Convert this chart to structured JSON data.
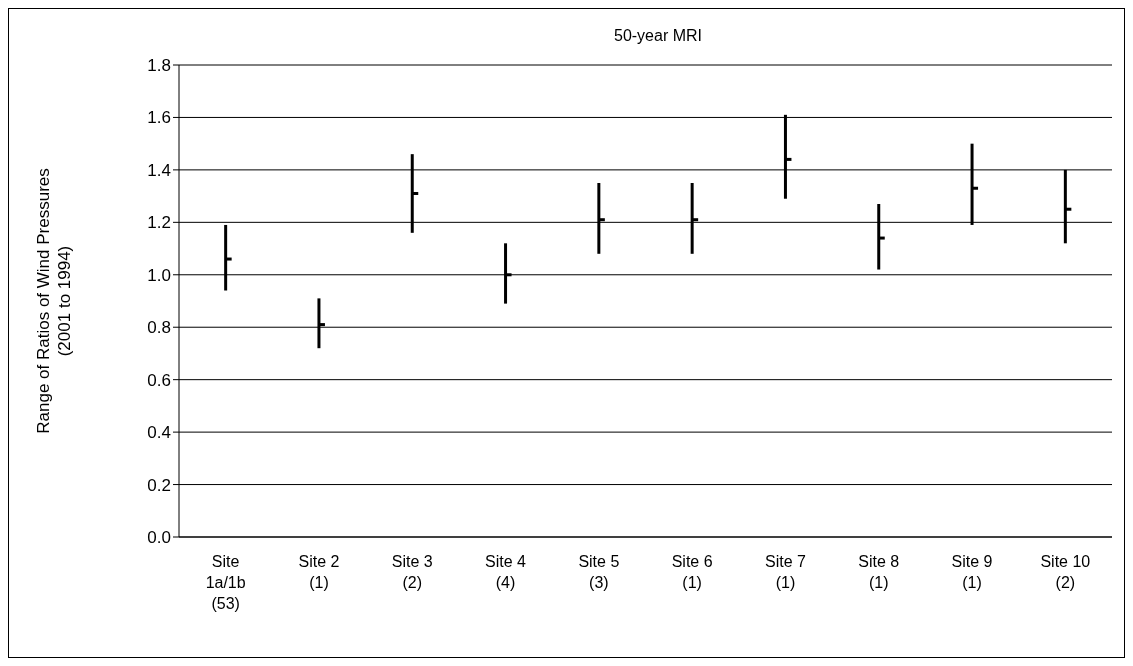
{
  "chart_data": {
    "type": "scatter",
    "title": "50-year MRI",
    "ylabel": "Range of Ratios of Wind Pressures\n(2001 to 1994)",
    "categories": [
      "Site\n1a/1b\n(53)",
      "Site 2\n(1)",
      "Site 3\n(2)",
      "Site 4\n(4)",
      "Site 5\n(3)",
      "Site 6\n(1)",
      "Site 7\n(1)",
      "Site 8\n(1)",
      "Site 9\n(1)",
      "Site 10\n(2)"
    ],
    "values": [
      1.06,
      0.81,
      1.31,
      1.0,
      1.21,
      1.21,
      1.44,
      1.14,
      1.33,
      1.25
    ],
    "errors": [
      [
        0.94,
        1.19
      ],
      [
        0.72,
        0.91
      ],
      [
        1.16,
        1.46
      ],
      [
        0.89,
        1.12
      ],
      [
        1.08,
        1.35
      ],
      [
        1.08,
        1.35
      ],
      [
        1.29,
        1.61
      ],
      [
        1.02,
        1.27
      ],
      [
        1.19,
        1.5
      ],
      [
        1.12,
        1.4
      ]
    ],
    "color": "#000000",
    "ylim": [
      0,
      1.8
    ],
    "yticks": [
      {
        "value": 0,
        "label": "0.0"
      },
      0.2,
      0.4,
      0.6,
      0.8,
      {
        "value": 1,
        "label": "1.0"
      },
      1.2,
      1.4,
      1.6,
      1.8
    ],
    "grid": "y"
  }
}
